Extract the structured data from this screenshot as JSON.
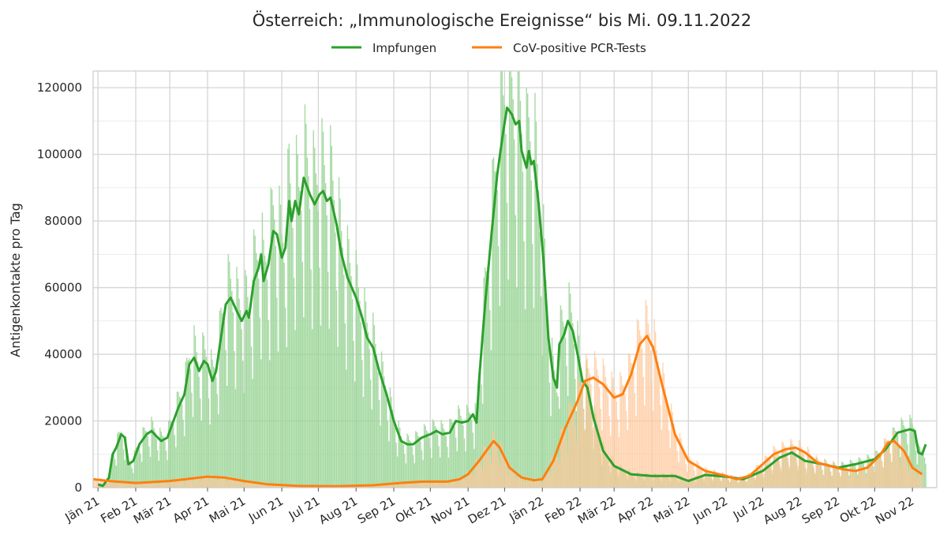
{
  "chart_data": {
    "type": "bar",
    "title": "Österreich: „Immunologische Ereignisse“ bis Mi. 09.11.2022",
    "ylabel": "Antigenkontakte pro Tag",
    "xlabel": "",
    "ylim": [
      0,
      125000
    ],
    "xlim": [
      "2020-12-28",
      "2022-11-21"
    ],
    "y_ticks": [
      0,
      20000,
      40000,
      60000,
      80000,
      100000,
      120000
    ],
    "x_ticks": [
      {
        "date": "2021-01-01",
        "label": "Jän 21"
      },
      {
        "date": "2021-02-01",
        "label": "Feb 21"
      },
      {
        "date": "2021-03-01",
        "label": "Mär 21"
      },
      {
        "date": "2021-04-01",
        "label": "Apr 21"
      },
      {
        "date": "2021-05-01",
        "label": "Mai 21"
      },
      {
        "date": "2021-06-01",
        "label": "Jun 21"
      },
      {
        "date": "2021-07-01",
        "label": "Jul 21"
      },
      {
        "date": "2021-08-01",
        "label": "Aug 21"
      },
      {
        "date": "2021-09-01",
        "label": "Sep 21"
      },
      {
        "date": "2021-10-01",
        "label": "Okt 21"
      },
      {
        "date": "2021-11-01",
        "label": "Nov 21"
      },
      {
        "date": "2021-12-01",
        "label": "Dez 21"
      },
      {
        "date": "2022-01-01",
        "label": "Jän 22"
      },
      {
        "date": "2022-02-01",
        "label": "Feb 22"
      },
      {
        "date": "2022-03-01",
        "label": "Mär 22"
      },
      {
        "date": "2022-04-01",
        "label": "Apr 22"
      },
      {
        "date": "2022-05-01",
        "label": "Mai 22"
      },
      {
        "date": "2022-06-01",
        "label": "Jun 22"
      },
      {
        "date": "2022-07-01",
        "label": "Jul 22"
      },
      {
        "date": "2022-08-01",
        "label": "Aug 22"
      },
      {
        "date": "2022-09-01",
        "label": "Sep 22"
      },
      {
        "date": "2022-10-01",
        "label": "Okt 22"
      },
      {
        "date": "2022-11-01",
        "label": "Nov 22"
      }
    ],
    "grid": true,
    "legend_position": "top-center",
    "series": [
      {
        "name": "Impfungen",
        "color": "#2ca02c",
        "bar_color": "#98d494",
        "smoothed": [
          [
            "2021-01-01",
            1000
          ],
          [
            "2021-01-05",
            500
          ],
          [
            "2021-01-10",
            3000
          ],
          [
            "2021-01-13",
            10000
          ],
          [
            "2021-01-16",
            12000
          ],
          [
            "2021-01-20",
            16000
          ],
          [
            "2021-01-23",
            15000
          ],
          [
            "2021-01-26",
            7000
          ],
          [
            "2021-01-30",
            8000
          ],
          [
            "2021-02-04",
            13000
          ],
          [
            "2021-02-10",
            16000
          ],
          [
            "2021-02-14",
            17000
          ],
          [
            "2021-02-19",
            15000
          ],
          [
            "2021-02-22",
            14000
          ],
          [
            "2021-02-27",
            15000
          ],
          [
            "2021-03-04",
            20000
          ],
          [
            "2021-03-08",
            24000
          ],
          [
            "2021-03-13",
            28000
          ],
          [
            "2021-03-17",
            37000
          ],
          [
            "2021-03-21",
            39000
          ],
          [
            "2021-03-25",
            35000
          ],
          [
            "2021-03-29",
            38000
          ],
          [
            "2021-04-01",
            37000
          ],
          [
            "2021-04-05",
            32000
          ],
          [
            "2021-04-08",
            35000
          ],
          [
            "2021-04-12",
            45000
          ],
          [
            "2021-04-16",
            55000
          ],
          [
            "2021-04-20",
            57000
          ],
          [
            "2021-04-25",
            53000
          ],
          [
            "2021-04-29",
            50000
          ],
          [
            "2021-05-03",
            53000
          ],
          [
            "2021-05-05",
            51000
          ],
          [
            "2021-05-09",
            62000
          ],
          [
            "2021-05-13",
            66000
          ],
          [
            "2021-05-15",
            70000
          ],
          [
            "2021-05-17",
            62000
          ],
          [
            "2021-05-21",
            67000
          ],
          [
            "2021-05-25",
            77000
          ],
          [
            "2021-05-28",
            76000
          ],
          [
            "2021-06-01",
            69000
          ],
          [
            "2021-06-04",
            72000
          ],
          [
            "2021-06-07",
            86000
          ],
          [
            "2021-06-09",
            80000
          ],
          [
            "2021-06-12",
            86000
          ],
          [
            "2021-06-15",
            82000
          ],
          [
            "2021-06-19",
            93000
          ],
          [
            "2021-06-24",
            88000
          ],
          [
            "2021-06-28",
            85000
          ],
          [
            "2021-07-02",
            88000
          ],
          [
            "2021-07-05",
            89000
          ],
          [
            "2021-07-08",
            86000
          ],
          [
            "2021-07-11",
            87000
          ],
          [
            "2021-07-16",
            79000
          ],
          [
            "2021-07-20",
            70000
          ],
          [
            "2021-07-25",
            63000
          ],
          [
            "2021-08-01",
            57000
          ],
          [
            "2021-08-06",
            51000
          ],
          [
            "2021-08-10",
            45000
          ],
          [
            "2021-08-15",
            42000
          ],
          [
            "2021-08-20",
            35000
          ],
          [
            "2021-08-26",
            28000
          ],
          [
            "2021-09-01",
            20000
          ],
          [
            "2021-09-07",
            14000
          ],
          [
            "2021-09-12",
            13000
          ],
          [
            "2021-09-17",
            13000
          ],
          [
            "2021-09-24",
            15000
          ],
          [
            "2021-10-01",
            16000
          ],
          [
            "2021-10-06",
            17000
          ],
          [
            "2021-10-11",
            16000
          ],
          [
            "2021-10-17",
            16500
          ],
          [
            "2021-10-22",
            20000
          ],
          [
            "2021-10-27",
            19500
          ],
          [
            "2021-11-01",
            20000
          ],
          [
            "2021-11-05",
            22000
          ],
          [
            "2021-11-08",
            19500
          ],
          [
            "2021-11-10",
            32000
          ],
          [
            "2021-11-15",
            55000
          ],
          [
            "2021-11-20",
            75000
          ],
          [
            "2021-11-25",
            94000
          ],
          [
            "2021-11-30",
            107000
          ],
          [
            "2021-12-03",
            114000
          ],
          [
            "2021-12-07",
            112000
          ],
          [
            "2021-12-10",
            109000
          ],
          [
            "2021-12-13",
            110000
          ],
          [
            "2021-12-15",
            101000
          ],
          [
            "2021-12-19",
            96000
          ],
          [
            "2021-12-21",
            101000
          ],
          [
            "2021-12-23",
            97000
          ],
          [
            "2021-12-25",
            98000
          ],
          [
            "2021-12-29",
            85000
          ],
          [
            "2022-01-02",
            68000
          ],
          [
            "2022-01-06",
            45000
          ],
          [
            "2022-01-10",
            33000
          ],
          [
            "2022-01-13",
            30000
          ],
          [
            "2022-01-15",
            43000
          ],
          [
            "2022-01-19",
            46000
          ],
          [
            "2022-01-22",
            50000
          ],
          [
            "2022-01-26",
            47000
          ],
          [
            "2022-01-30",
            40000
          ],
          [
            "2022-02-03",
            32000
          ],
          [
            "2022-02-07",
            30000
          ],
          [
            "2022-02-12",
            21000
          ],
          [
            "2022-02-20",
            11000
          ],
          [
            "2022-03-01",
            6500
          ],
          [
            "2022-03-15",
            4000
          ],
          [
            "2022-04-01",
            3500
          ],
          [
            "2022-04-20",
            3500
          ],
          [
            "2022-05-01",
            2000
          ],
          [
            "2022-05-15",
            3800
          ],
          [
            "2022-06-01",
            3300
          ],
          [
            "2022-06-15",
            2500
          ],
          [
            "2022-07-01",
            5000
          ],
          [
            "2022-07-15",
            9000
          ],
          [
            "2022-07-25",
            10500
          ],
          [
            "2022-08-05",
            8000
          ],
          [
            "2022-08-20",
            7000
          ],
          [
            "2022-09-01",
            6000
          ],
          [
            "2022-09-15",
            7000
          ],
          [
            "2022-10-01",
            8500
          ],
          [
            "2022-10-10",
            11500
          ],
          [
            "2022-10-20",
            16500
          ],
          [
            "2022-10-30",
            17500
          ],
          [
            "2022-11-03",
            17000
          ],
          [
            "2022-11-06",
            10500
          ],
          [
            "2022-11-09",
            10000
          ],
          [
            "2022-11-12",
            13000
          ]
        ]
      },
      {
        "name": "CoV-positive PCR-Tests",
        "color": "#ff7f0e",
        "bar_color": "#ffc697",
        "smoothed": [
          [
            "2020-12-28",
            2500
          ],
          [
            "2021-01-10",
            2000
          ],
          [
            "2021-02-01",
            1400
          ],
          [
            "2021-03-01",
            2000
          ],
          [
            "2021-03-20",
            2800
          ],
          [
            "2021-04-01",
            3300
          ],
          [
            "2021-04-15",
            3000
          ],
          [
            "2021-05-01",
            2000
          ],
          [
            "2021-05-20",
            1000
          ],
          [
            "2021-06-15",
            500
          ],
          [
            "2021-07-15",
            400
          ],
          [
            "2021-08-15",
            700
          ],
          [
            "2021-09-10",
            1500
          ],
          [
            "2021-09-25",
            1800
          ],
          [
            "2021-10-05",
            1800
          ],
          [
            "2021-10-15",
            1800
          ],
          [
            "2021-10-25",
            2500
          ],
          [
            "2021-11-01",
            4000
          ],
          [
            "2021-11-10",
            8000
          ],
          [
            "2021-11-18",
            12000
          ],
          [
            "2021-11-22",
            14000
          ],
          [
            "2021-11-27",
            12000
          ],
          [
            "2021-12-05",
            6000
          ],
          [
            "2021-12-15",
            3000
          ],
          [
            "2021-12-25",
            2200
          ],
          [
            "2022-01-01",
            2500
          ],
          [
            "2022-01-10",
            8000
          ],
          [
            "2022-01-20",
            18000
          ],
          [
            "2022-01-30",
            26000
          ],
          [
            "2022-02-05",
            32000
          ],
          [
            "2022-02-12",
            33000
          ],
          [
            "2022-02-20",
            31000
          ],
          [
            "2022-03-01",
            27000
          ],
          [
            "2022-03-08",
            28000
          ],
          [
            "2022-03-15",
            34000
          ],
          [
            "2022-03-22",
            43000
          ],
          [
            "2022-03-28",
            45500
          ],
          [
            "2022-04-02",
            42000
          ],
          [
            "2022-04-10",
            30000
          ],
          [
            "2022-04-20",
            16000
          ],
          [
            "2022-05-01",
            8000
          ],
          [
            "2022-05-15",
            5000
          ],
          [
            "2022-06-01",
            3500
          ],
          [
            "2022-06-10",
            2500
          ],
          [
            "2022-06-20",
            3500
          ],
          [
            "2022-07-01",
            7000
          ],
          [
            "2022-07-10",
            10000
          ],
          [
            "2022-07-20",
            11500
          ],
          [
            "2022-07-28",
            12000
          ],
          [
            "2022-08-05",
            10500
          ],
          [
            "2022-08-15",
            7500
          ],
          [
            "2022-08-25",
            6500
          ],
          [
            "2022-09-05",
            5500
          ],
          [
            "2022-09-15",
            5000
          ],
          [
            "2022-09-25",
            6000
          ],
          [
            "2022-10-05",
            9500
          ],
          [
            "2022-10-12",
            13500
          ],
          [
            "2022-10-17",
            14000
          ],
          [
            "2022-10-25",
            11000
          ],
          [
            "2022-11-01",
            6000
          ],
          [
            "2022-11-09",
            4000
          ]
        ]
      }
    ]
  }
}
